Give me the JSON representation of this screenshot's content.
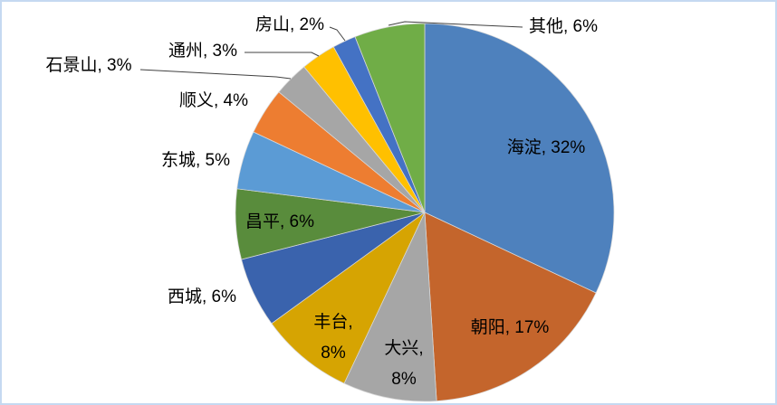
{
  "chart_data": {
    "type": "pie",
    "title": "",
    "legend": "none",
    "start_angle_deg": 0,
    "direction": "clockwise",
    "label_format": "{name}, {value}%",
    "categories": [
      "海淀",
      "朝阳",
      "大兴",
      "丰台",
      "西城",
      "昌平",
      "东城",
      "顺义",
      "石景山",
      "通州",
      "房山",
      "其他"
    ],
    "values": [
      32,
      17,
      8,
      8,
      6,
      6,
      5,
      4,
      3,
      3,
      2,
      6
    ],
    "labels": [
      "海淀, 32%",
      "朝阳, 17%",
      "大兴, 8%",
      "丰台, 8%",
      "西城, 6%",
      "昌平, 6%",
      "东城, 5%",
      "顺义, 4%",
      "石景山, 3%",
      "通州, 3%",
      "房山, 2%",
      "其他, 6%"
    ],
    "colors": [
      "#4E81BD",
      "#C4652C",
      "#A6A6A6",
      "#D6A402",
      "#3A63AD",
      "#598C3C",
      "#5B9BD5",
      "#ED7D31",
      "#A6A6A6",
      "#FFC000",
      "#4472C4",
      "#70AD47"
    ]
  },
  "frame": {
    "background": "#FFFFFF",
    "border_color": "#C5D9F1",
    "label_color": "#000000",
    "leader_line_color": "#404040",
    "slice_separator_color": "#D9D9D9"
  }
}
